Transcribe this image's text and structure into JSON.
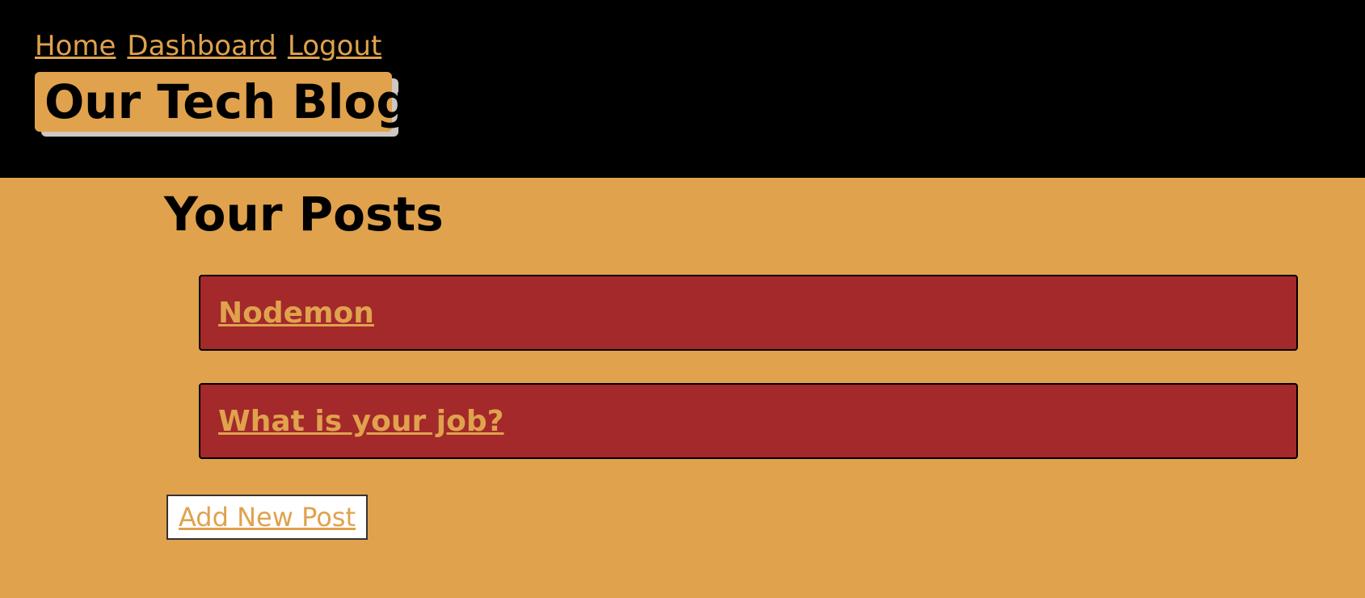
{
  "nav": {
    "home": "Home",
    "dashboard": "Dashboard",
    "logout": "Logout"
  },
  "brand": {
    "title": "Our Tech Blog"
  },
  "main": {
    "title": "Your Posts",
    "posts": [
      {
        "title": "Nodemon"
      },
      {
        "title": "What is your job?"
      }
    ],
    "add_button": "Add New Post"
  },
  "colors": {
    "header_bg": "#000000",
    "page_bg": "#e0a24d",
    "card_bg": "#a3292b",
    "accent": "#e0a24d"
  }
}
